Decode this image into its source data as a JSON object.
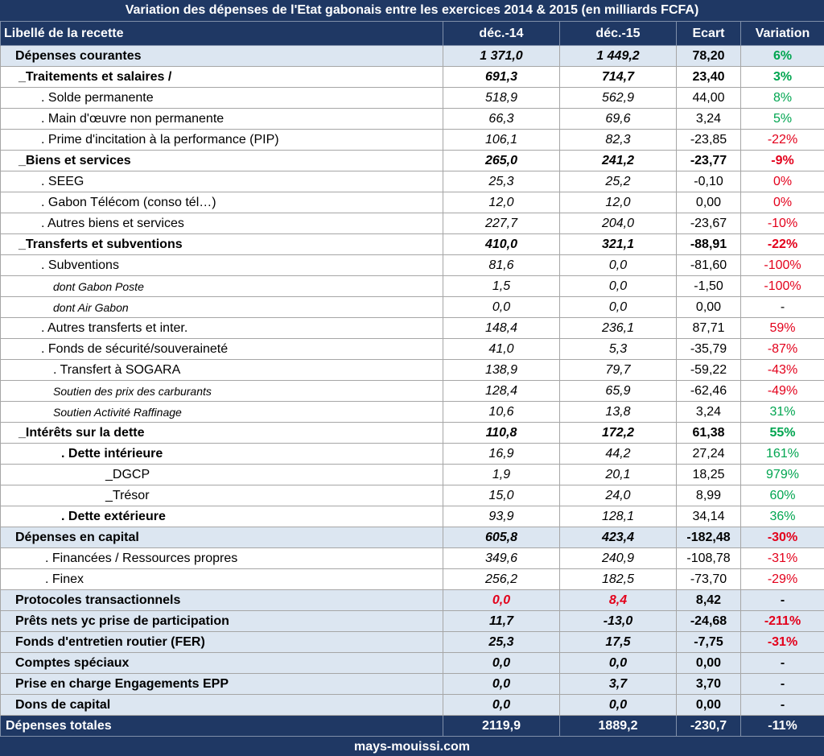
{
  "title": "Variation des dépenses de l'Etat gabonais entre les exercices 2014 & 2015 (en milliards FCFA)",
  "columns": [
    "Libellé de la recette",
    "déc.-14",
    "déc.-15",
    "Ecart",
    "Variation"
  ],
  "rows": [
    [
      "Dépenses courantes",
      "1 371,0",
      "1 449,2",
      "78,20",
      "6%"
    ],
    [
      "_Traitements et salaires  /",
      "691,3",
      "714,7",
      "23,40",
      "3%"
    ],
    [
      ". Solde permanente",
      "518,9",
      "562,9",
      "44,00",
      "8%"
    ],
    [
      ". Main d'œuvre non permanente",
      "66,3",
      "69,6",
      "3,24",
      "5%"
    ],
    [
      ". Prime d'incitation à la performance (PIP)",
      "106,1",
      "82,3",
      "-23,85",
      "-22%"
    ],
    [
      "_Biens et services",
      "265,0",
      "241,2",
      "-23,77",
      "-9%"
    ],
    [
      ". SEEG",
      "25,3",
      "25,2",
      "-0,10",
      "0%"
    ],
    [
      ". Gabon Télécom (conso tél…)",
      "12,0",
      "12,0",
      "0,00",
      "0%"
    ],
    [
      ". Autres biens et services",
      "227,7",
      "204,0",
      "-23,67",
      "-10%"
    ],
    [
      "_Transferts et subventions",
      "410,0",
      "321,1",
      "-88,91",
      "-22%"
    ],
    [
      ". Subventions",
      "81,6",
      "0,0",
      "-81,60",
      "-100%"
    ],
    [
      "dont Gabon Poste",
      "1,5",
      "0,0",
      "-1,50",
      "-100%"
    ],
    [
      "dont Air Gabon",
      "0,0",
      "0,0",
      "0,00",
      "-"
    ],
    [
      ". Autres transferts et inter.",
      "148,4",
      "236,1",
      "87,71",
      "59%"
    ],
    [
      ". Fonds de sécurité/souveraineté",
      "41,0",
      "5,3",
      "-35,79",
      "-87%"
    ],
    [
      ". Transfert à SOGARA",
      "138,9",
      "79,7",
      "-59,22",
      "-43%"
    ],
    [
      "Soutien des prix des carburants",
      "128,4",
      "65,9",
      "-62,46",
      "-49%"
    ],
    [
      "Soutien Activité Raffinage",
      "10,6",
      "13,8",
      "3,24",
      "31%"
    ],
    [
      "_Intérêts sur la dette",
      "110,8",
      "172,2",
      "61,38",
      "55%"
    ],
    [
      ". Dette intérieure",
      "16,9",
      "44,2",
      "27,24",
      "161%"
    ],
    [
      "_DGCP",
      "1,9",
      "20,1",
      "18,25",
      "979%"
    ],
    [
      "_Trésor",
      "15,0",
      "24,0",
      "8,99",
      "60%"
    ],
    [
      ". Dette extérieure",
      "93,9",
      "128,1",
      "34,14",
      "36%"
    ],
    [
      "Dépenses en capital",
      "605,8",
      "423,4",
      "-182,48",
      "-30%"
    ],
    [
      ". Financées / Ressources propres",
      "349,6",
      "240,9",
      "-108,78",
      "-31%"
    ],
    [
      ". Finex",
      "256,2",
      "182,5",
      "-73,70",
      "-29%"
    ],
    [
      "Protocoles transactionnels",
      "0,0",
      "8,4",
      "8,42",
      "-"
    ],
    [
      "Prêts nets yc prise de participation",
      "11,7",
      "-13,0",
      "-24,68",
      "-211%"
    ],
    [
      "Fonds d'entretien routier (FER)",
      "25,3",
      "17,5",
      "-7,75",
      "-31%"
    ],
    [
      "Comptes spéciaux",
      "0,0",
      "0,0",
      "0,00",
      "-"
    ],
    [
      "Prise en charge Engagements EPP",
      "0,0",
      "3,7",
      "3,70",
      "-"
    ],
    [
      "Dons de capital",
      "0,0",
      "0,0",
      "0,00",
      "-"
    ],
    [
      "Dépenses totales",
      "2119,9",
      "1889,2",
      "-230,7",
      "-11%"
    ]
  ],
  "footer": "mays-mouissi.com"
}
